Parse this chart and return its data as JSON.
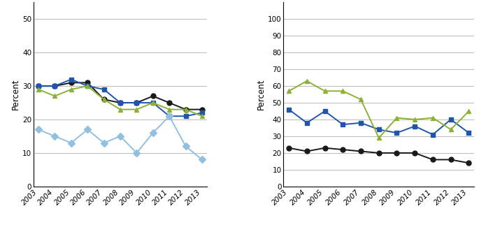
{
  "years": [
    2003,
    2004,
    2005,
    2006,
    2007,
    2008,
    2009,
    2010,
    2011,
    2012,
    2013
  ],
  "left": {
    "Total": [
      30,
      30,
      31,
      31,
      26,
      25,
      25,
      27,
      25,
      23,
      23
    ],
    "Private": [
      30,
      30,
      32,
      30,
      29,
      25,
      25,
      25,
      21,
      21,
      22
    ],
    "Public": [
      29,
      27,
      29,
      30,
      26,
      23,
      23,
      25,
      23,
      23,
      21
    ],
    "Uninsured": [
      17,
      15,
      13,
      17,
      13,
      15,
      10,
      16,
      21,
      12,
      8
    ],
    "colors": {
      "Total": "#1a1a1a",
      "Private": "#2255aa",
      "Public": "#8db03a",
      "Uninsured": "#92c0e0"
    },
    "markers": {
      "Total": "o",
      "Private": "s",
      "Public": "^",
      "Uninsured": "D"
    },
    "ylabel": "Percent",
    "ylim": [
      0,
      55
    ],
    "yticks": [
      0,
      10,
      20,
      30,
      40,
      50
    ]
  },
  "right": {
    "0-1 Conditions": [
      23,
      21,
      23,
      22,
      21,
      20,
      20,
      20,
      16,
      16,
      14
    ],
    "2-3 Conditions": [
      46,
      38,
      45,
      37,
      38,
      34,
      32,
      36,
      31,
      40,
      32
    ],
    "4+ Conditions": [
      57,
      63,
      57,
      57,
      52,
      29,
      41,
      40,
      41,
      34,
      45
    ],
    "colors": {
      "0-1 Conditions": "#1a1a1a",
      "2-3 Conditions": "#2255aa",
      "4+ Conditions": "#8db03a"
    },
    "markers": {
      "0-1 Conditions": "o",
      "2-3 Conditions": "s",
      "4+ Conditions": "^"
    },
    "ylabel": "Percent",
    "ylim": [
      0,
      110
    ],
    "yticks": [
      0,
      10,
      20,
      30,
      40,
      50,
      60,
      70,
      80,
      90,
      100
    ]
  },
  "background_color": "#ffffff",
  "grid_color": "#b0b0b0",
  "line_width": 1.4,
  "marker_size": 5
}
